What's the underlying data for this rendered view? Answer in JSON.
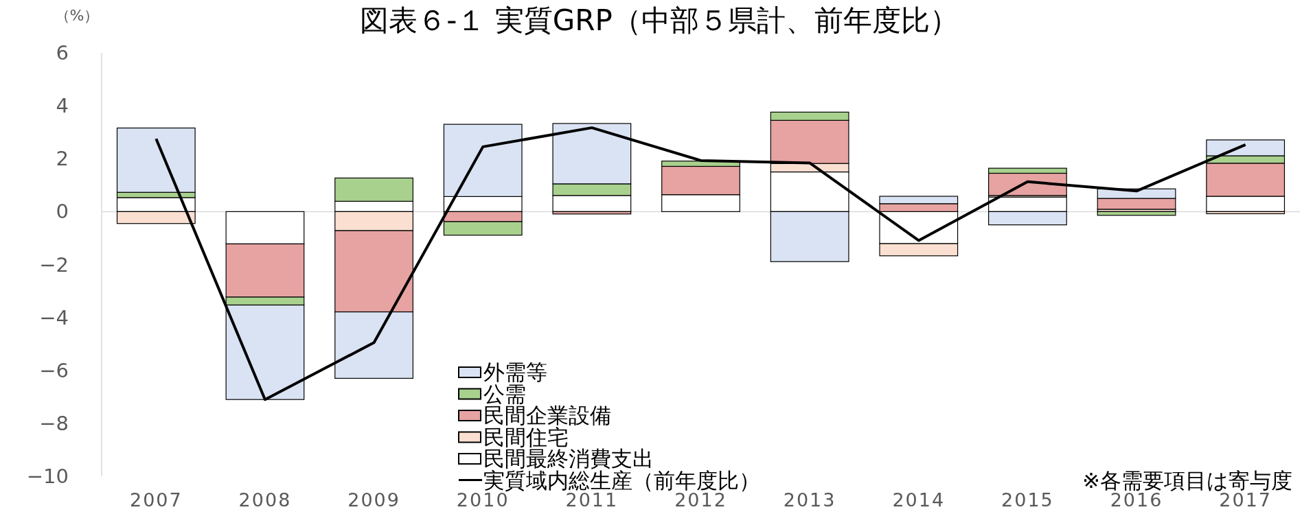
{
  "chart_data": {
    "type": "bar",
    "title": "図表６-１ 実質GRP（中部５県計、前年度比）",
    "ylabel": "（%）",
    "categories": [
      "2007",
      "2008",
      "2009",
      "2010",
      "2011",
      "2012",
      "2013",
      "2014",
      "2015",
      "2016",
      "2017"
    ],
    "stacked": true,
    "series": [
      {
        "name": "民間最終消費支出",
        "color": "#ffffff",
        "values": [
          0.53,
          -1.22,
          0.39,
          0.57,
          0.61,
          0.64,
          1.5,
          -1.21,
          0.55,
          null,
          0.58
        ]
      },
      {
        "name": "民間住宅",
        "color": "#fbe0d2",
        "values": [
          -0.45,
          0,
          -0.72,
          0,
          0,
          0,
          0.32,
          -0.46,
          0.06,
          0.09,
          -0.08
        ]
      },
      {
        "name": "民間企業設備",
        "color": "#e6a3a1",
        "values": [
          0,
          -2.01,
          -3.07,
          -0.38,
          -0.09,
          1.07,
          1.63,
          0.3,
          0.84,
          0.41,
          1.25
        ]
      },
      {
        "name": "公需",
        "color": "#a9d18e",
        "values": [
          0.2,
          -0.3,
          0.88,
          -0.51,
          0.44,
          0.2,
          0.31,
          0,
          0.19,
          -0.14,
          0.28
        ]
      },
      {
        "name": "外需等",
        "color": "#dae3f3",
        "values": [
          2.43,
          -3.57,
          -2.51,
          2.73,
          2.28,
          0,
          -1.89,
          0.28,
          -0.5,
          0.36,
          0.6
        ]
      },
      {
        "name": "実質域内総生産（前年度比）",
        "type": "line",
        "color": "#000000",
        "values": [
          2.75,
          -7.1,
          -4.95,
          2.45,
          3.17,
          1.93,
          1.84,
          -1.09,
          1.13,
          0.78,
          2.53
        ]
      }
    ],
    "ylim": [
      -10,
      6
    ],
    "yticks": [
      {
        "value": -10,
        "label": "−10"
      },
      {
        "value": -8,
        "label": "−8"
      },
      {
        "value": -6,
        "label": "−6"
      },
      {
        "value": -4,
        "label": "−4"
      },
      {
        "value": -2,
        "label": "−2"
      },
      0,
      2,
      4,
      6
    ],
    "ref_lines": [
      {
        "axis": "y",
        "value": 0,
        "color": "#d9d9d9"
      }
    ],
    "legend": "bottom",
    "annotations": [
      "※各需要項目は寄与度"
    ]
  }
}
